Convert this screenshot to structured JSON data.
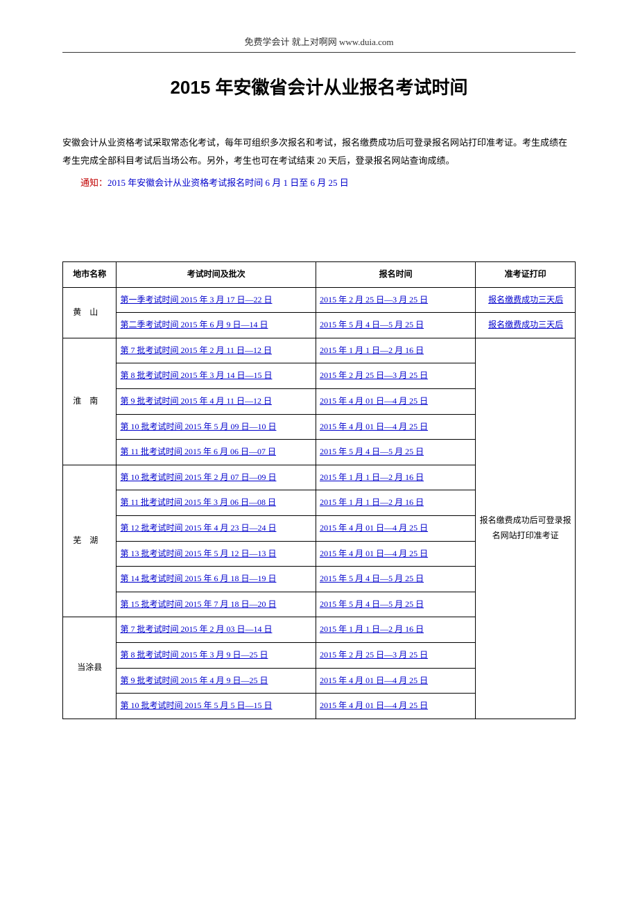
{
  "header": "免费学会计  就上对啊网  www.duia.com",
  "title": "2015 年安徽省会计从业报名考试时间",
  "intro": "安徽会计从业资格考试采取常态化考试，每年可组织多次报名和考试，报名缴费成功后可登录报名网站打印准考证。考生成绩在考生完成全部科目考试后当场公布。另外，考生也可在考试结束 20 天后，登录报名网站查询成绩。",
  "notice_label": "通知：",
  "notice_text": "2015 年安徽会计从业资格考试报名时间 6 月 1 日至 6 月 25 日",
  "columns": {
    "city": "地市名称",
    "exam": "考试时间及批次",
    "register": "报名时间",
    "cert": "准考证打印"
  },
  "cert_merged_text": "报名缴费成功后可登录报名网站打印准考证",
  "cities": [
    {
      "name": "黄山",
      "rows": [
        {
          "exam": "第一季考试时间 2015 年 3 月 17 日—22 日",
          "register": "2015 年 2 月 25 日—3 月 25 日",
          "cert": "报名缴费成功三天后"
        },
        {
          "exam": "第二季考试时间 2015 年 6 月 9 日—14 日",
          "register": "2015 年 5 月 4 日—5 月 25 日",
          "cert": "报名缴费成功三天后"
        }
      ]
    },
    {
      "name": "淮南",
      "rows": [
        {
          "exam": "第 7 批考试时间 2015 年 2 月 11 日—12 日",
          "register": "2015 年 1 月 1 日—2 月 16 日"
        },
        {
          "exam": "第 8 批考试时间 2015 年 3 月 14 日—15 日",
          "register": "2015 年 2 月 25 日—3 月 25 日"
        },
        {
          "exam": "第 9 批考试时间 2015 年 4 月 11 日—12 日",
          "register": "2015 年 4 月 01 日—4 月 25 日"
        },
        {
          "exam": "第 10 批考试时间 2015 年 5 月 09 日—10 日",
          "register": "2015 年 4 月 01 日—4 月 25 日"
        },
        {
          "exam": "第 11 批考试时间 2015 年 6 月 06 日—07 日",
          "register": "2015 年 5 月 4 日—5 月 25 日"
        }
      ]
    },
    {
      "name": "芜湖",
      "rows": [
        {
          "exam": "第 10 批考试时间 2015 年 2 月 07 日—09 日",
          "register": "2015 年 1 月 1 日—2 月 16 日"
        },
        {
          "exam": "第 11 批考试时间 2015 年 3 月 06 日—08 日",
          "register": "2015 年 1 月 1 日—2 月 16 日"
        },
        {
          "exam": "第 12 批考试时间 2015 年 4 月 23 日—24 日",
          "register": "2015 年 4 月 01 日—4 月 25 日"
        },
        {
          "exam": "第 13 批考试时间 2015 年 5 月 12 日—13 日",
          "register": "2015 年 4 月 01 日—4 月 25 日"
        },
        {
          "exam": "第 14 批考试时间 2015 年 6 月 18 日—19 日",
          "register": "2015 年 5 月 4 日—5 月 25 日"
        },
        {
          "exam": "第 15 批考试时间 2015 年 7 月 18 日—20 日",
          "register": "2015 年 5 月 4 日—5 月 25 日"
        }
      ]
    },
    {
      "name": "当涂县",
      "rows": [
        {
          "exam": "第 7 批考试时间 2015 年 2 月 03 日—14 日",
          "register": "2015 年 1 月 1 日—2 月 16 日"
        },
        {
          "exam": "第 8 批考试时间 2015 年 3 月 9 日—25 日",
          "register": "2015 年 2 月 25 日—3 月 25 日"
        },
        {
          "exam": "第 9 批考试时间 2015 年 4 月 9 日—25 日",
          "register": "2015 年 4 月 01 日—4 月 25 日"
        },
        {
          "exam": "第 10 批考试时间 2015 年 5 月 5 日—15 日",
          "register": "2015 年 4 月 01 日—4 月 25 日"
        }
      ]
    }
  ]
}
